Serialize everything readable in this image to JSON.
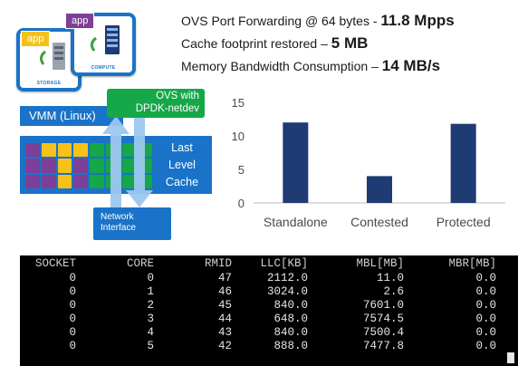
{
  "stats": [
    {
      "label": "OVS Port Forwarding @ 64 bytes  - ",
      "value": "11.8 Mpps"
    },
    {
      "label": "Cache footprint restored – ",
      "value": "5 MB"
    },
    {
      "label": "Memory Bandwidth Consumption – ",
      "value": "14 MB/s"
    }
  ],
  "diagram": {
    "app_storage": "app",
    "app_compute": "app",
    "storage_caption": "STORAGE",
    "compute_caption": "COMPUTE",
    "vmm": "VMM (Linux)",
    "ovs_line1": "OVS with",
    "ovs_line2": "DPDK-netdev",
    "llc_line1": "Last",
    "llc_line2": "Level",
    "llc_line3": "Cache",
    "net_line1": "Network",
    "net_line2": "Interface",
    "colors": {
      "blue": "#1a73c8",
      "green": "#15a748",
      "purple": "#7e3f98",
      "yellow": "#f6c21a"
    },
    "cache_cells": [
      [
        "purple",
        "yellow",
        "yellow",
        "yellow",
        "green",
        "green",
        "green",
        "green"
      ],
      [
        "purple",
        "purple",
        "yellow",
        "purple",
        "green",
        "green",
        "green",
        "green"
      ],
      [
        "purple",
        "purple",
        "yellow",
        "purple",
        "green",
        "green",
        "green",
        "green"
      ]
    ]
  },
  "chart_data": {
    "type": "bar",
    "categories": [
      "Standalone",
      "Contested",
      "Protected"
    ],
    "values": [
      12,
      4,
      11.8
    ],
    "ylim": [
      0,
      15
    ],
    "yticks": [
      0,
      5,
      10,
      15
    ],
    "grid": false,
    "bar_color": "#1f3b73"
  },
  "terminal": {
    "headers": [
      "SOCKET",
      "CORE",
      "RMID",
      "LLC[KB]",
      "MBL[MB]",
      "MBR[MB]"
    ],
    "rows": [
      [
        "0",
        "0",
        "47",
        "2112.0",
        "11.0",
        "0.0"
      ],
      [
        "0",
        "1",
        "46",
        "3024.0",
        "2.6",
        "0.0"
      ],
      [
        "0",
        "2",
        "45",
        "840.0",
        "7601.0",
        "0.0"
      ],
      [
        "0",
        "3",
        "44",
        "648.0",
        "7574.5",
        "0.0"
      ],
      [
        "0",
        "4",
        "43",
        "840.0",
        "7500.4",
        "0.0"
      ],
      [
        "0",
        "5",
        "42",
        "888.0",
        "7477.8",
        "0.0"
      ]
    ]
  }
}
